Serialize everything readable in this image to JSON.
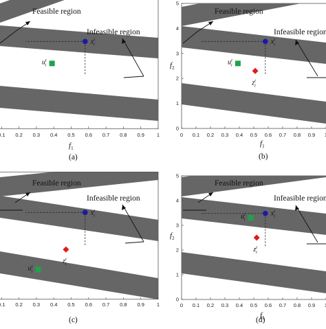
{
  "figure": {
    "annotations": {
      "feasible": "Feasible region",
      "infeasible": "Infeasible region"
    },
    "colors": {
      "band": "#666666",
      "frame": "#555555",
      "x_point": "#1a1aa6",
      "u_point": "#1ea34b",
      "z_point": "#e01b1b",
      "text": "#111111"
    },
    "x_ticks": [
      "0",
      "0.1",
      "0.2",
      "0.3",
      "0.4",
      "0.5",
      "0.6",
      "0.7",
      "0.8",
      "0.9",
      "1"
    ],
    "y_ticks": [
      "0",
      "1",
      "2",
      "3",
      "4",
      "5"
    ],
    "xlabel": "f",
    "xlabel_sub": "1",
    "ylabel": "f",
    "ylabel_sub": "2",
    "point_labels": {
      "x": "x",
      "u": "u",
      "z": "z",
      "sub": "i",
      "sup": "t"
    },
    "panels": [
      {
        "id": "a",
        "caption": "(a)",
        "has_z": false,
        "x": [
          0.58,
          3.48
        ],
        "u": [
          0.39,
          2.6
        ],
        "z": null
      },
      {
        "id": "b",
        "caption": "(b)",
        "has_z": true,
        "x": [
          0.58,
          3.48
        ],
        "u": [
          0.39,
          2.6
        ],
        "z": [
          0.51,
          2.3
        ]
      },
      {
        "id": "c",
        "caption": "(c)",
        "has_z": true,
        "x": [
          0.58,
          3.48
        ],
        "u": [
          0.31,
          1.2
        ],
        "z": [
          0.47,
          2.0
        ]
      },
      {
        "id": "d",
        "caption": "(d)",
        "has_z": true,
        "x": [
          0.58,
          3.48
        ],
        "u": [
          0.48,
          3.3
        ],
        "z": [
          0.52,
          2.5
        ]
      }
    ]
  }
}
